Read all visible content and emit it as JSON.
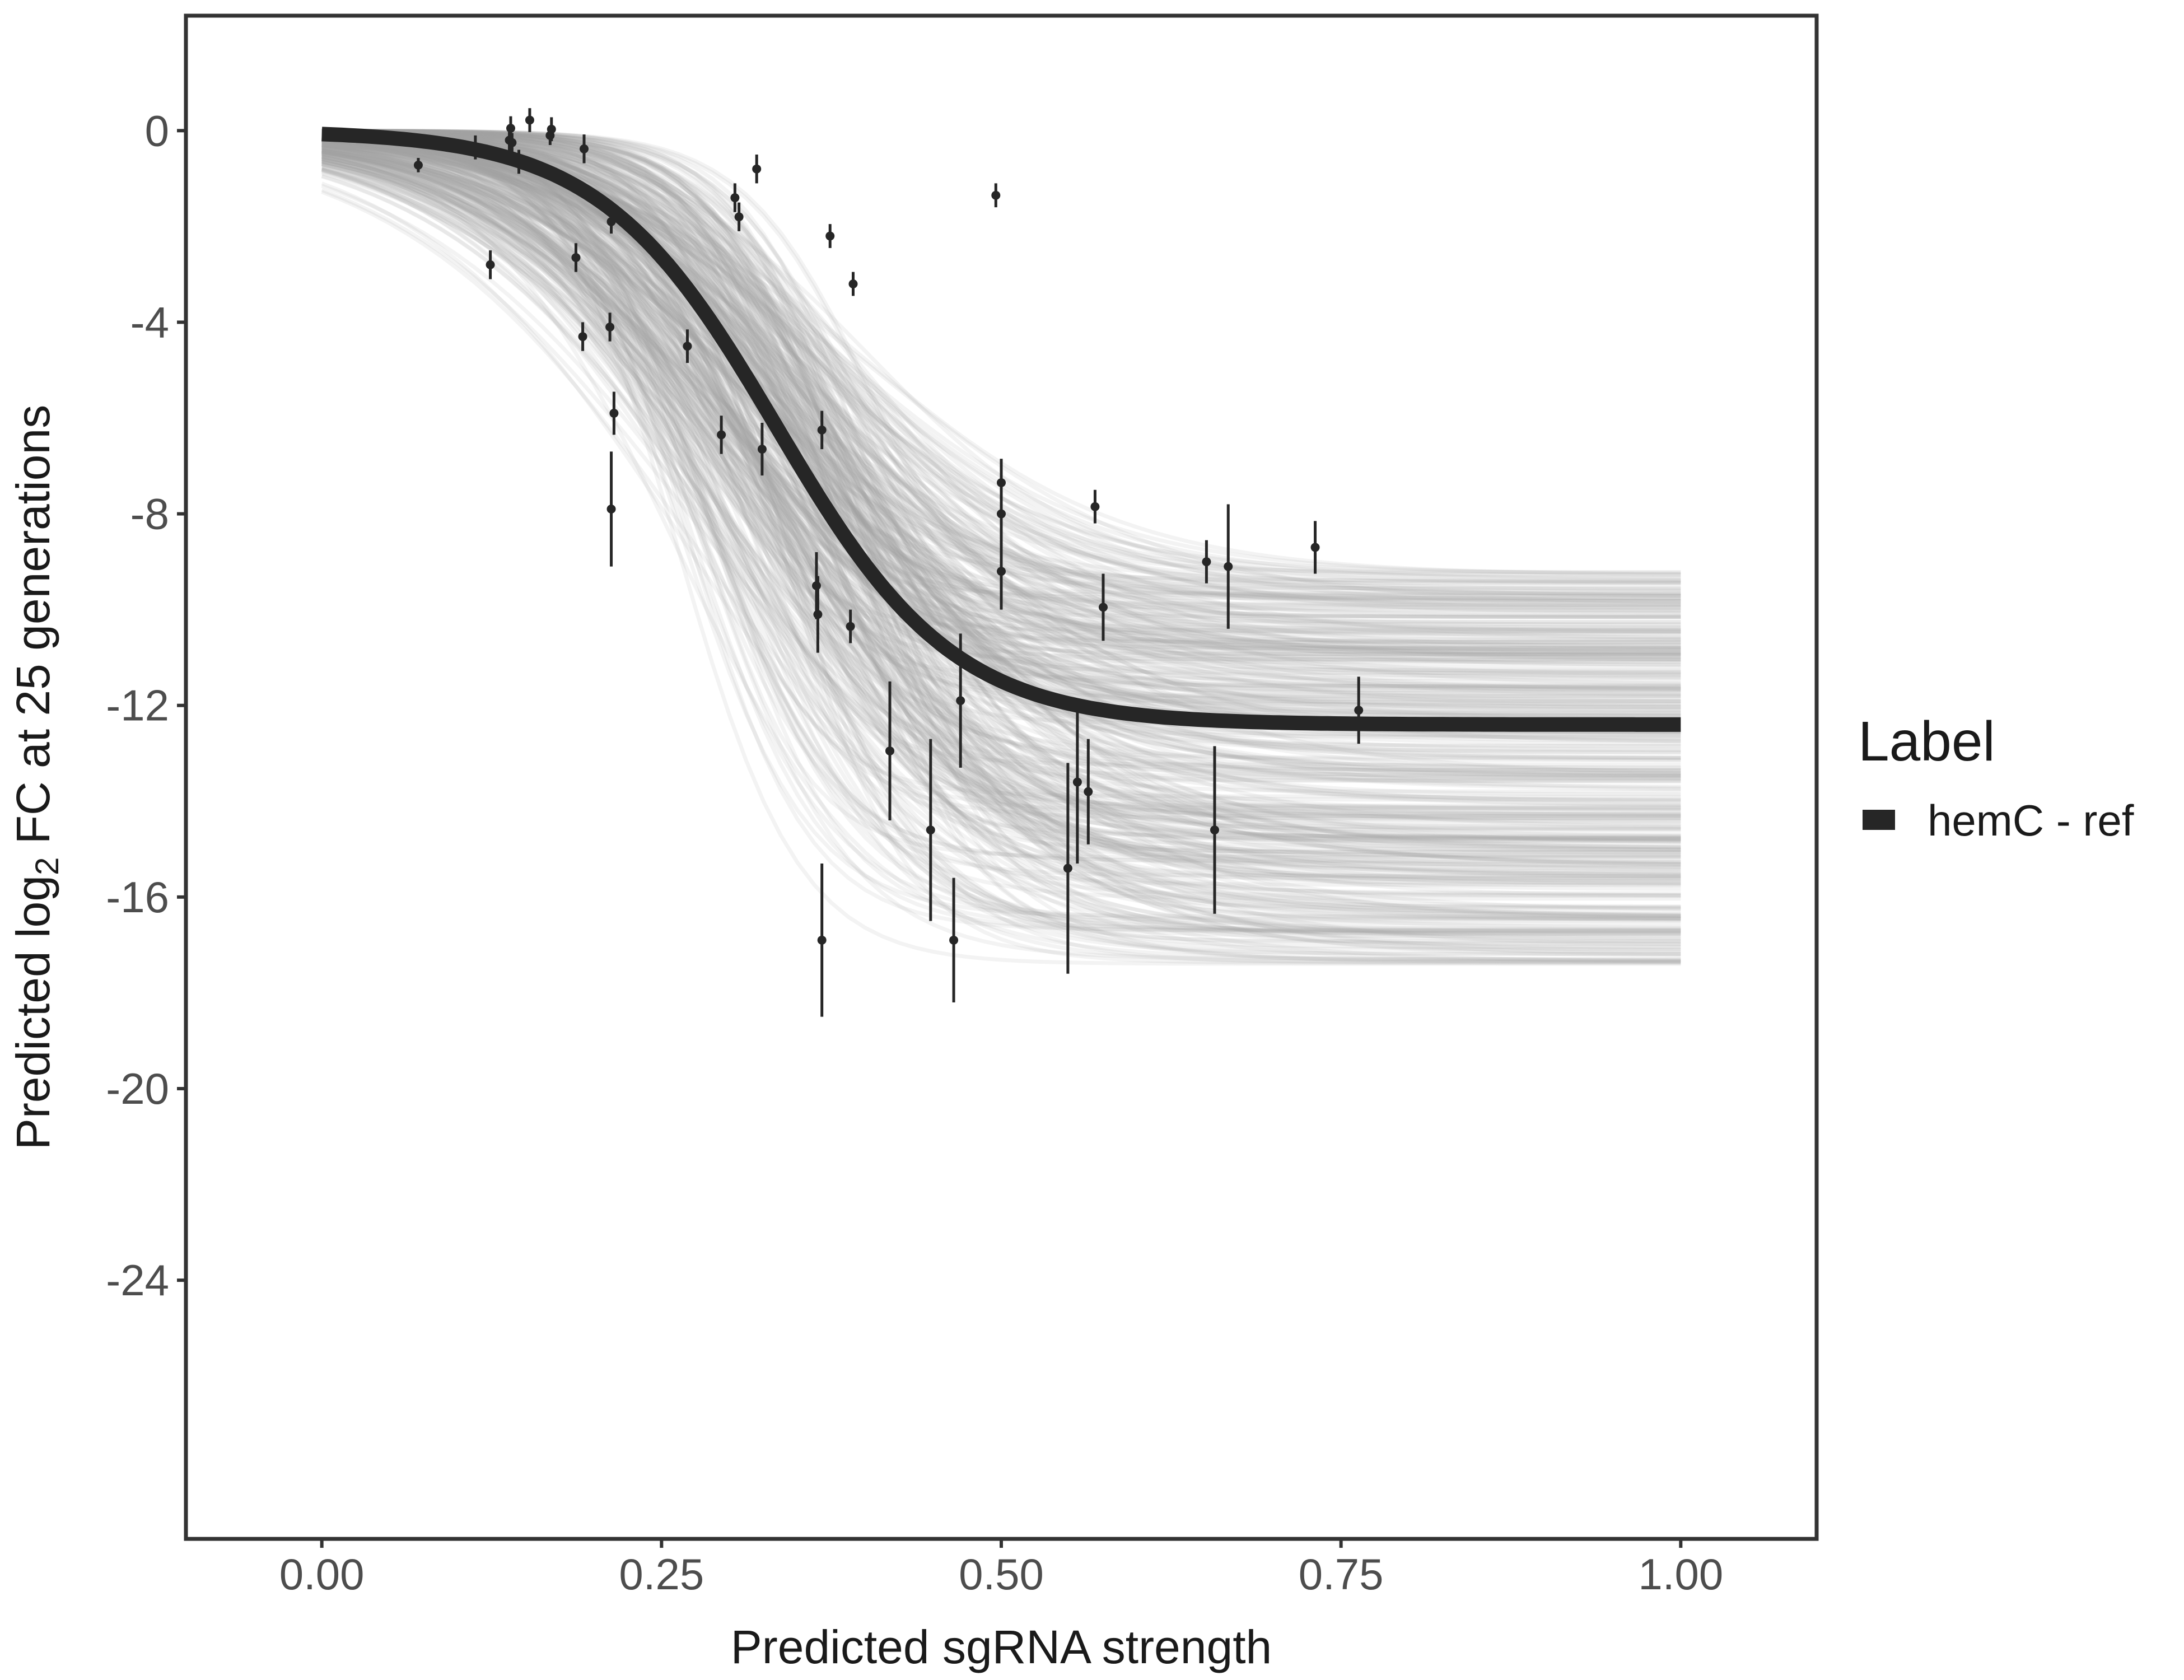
{
  "chart_data": {
    "type": "line",
    "title": "",
    "xlabel": "Predicted sgRNA strength",
    "ylabel": {
      "prefix": "Predicted  log",
      "subscript": "2",
      "suffix": " FC at 25 generations"
    },
    "xlim": [
      -0.1,
      1.1
    ],
    "ylim": [
      -29.4,
      2.4
    ],
    "x_ticks": [
      0.0,
      0.25,
      0.5,
      0.75,
      1.0
    ],
    "x_tick_labels": [
      "0.00",
      "0.25",
      "0.50",
      "0.75",
      "1.00"
    ],
    "y_ticks": [
      0,
      -4,
      -8,
      -12,
      -16,
      -20,
      -24
    ],
    "y_tick_labels": [
      "0",
      "-4",
      "-8",
      "-12",
      "-16",
      "-20",
      "-24"
    ],
    "grid": false,
    "legend": {
      "title": "Label",
      "position": "right",
      "entries": [
        {
          "label": "hemC - ref",
          "color": "#262626"
        }
      ]
    },
    "fit_curve": {
      "name": "hemC - ref",
      "model": "logistic",
      "upper": 0.0,
      "lower": -12.4,
      "midpoint": 0.335,
      "scale": 0.065,
      "color": "#262626"
    },
    "posterior_draws": {
      "count": 400,
      "color": "#a6a6a6",
      "lower_range": [
        -17.4,
        -9.2
      ],
      "midpoint_range": [
        0.26,
        0.41
      ],
      "scale_range": [
        0.04,
        0.11
      ]
    },
    "points": [
      {
        "x": 0.071,
        "y": -0.72,
        "err": 0.15
      },
      {
        "x": 0.113,
        "y": -0.35,
        "err": 0.25
      },
      {
        "x": 0.124,
        "y": -2.8,
        "err": 0.3
      },
      {
        "x": 0.138,
        "y": -0.2,
        "err": 0.25
      },
      {
        "x": 0.139,
        "y": 0.05,
        "err": 0.25
      },
      {
        "x": 0.14,
        "y": -0.25,
        "err": 0.2
      },
      {
        "x": 0.145,
        "y": -0.65,
        "err": 0.25
      },
      {
        "x": 0.153,
        "y": 0.22,
        "err": 0.25
      },
      {
        "x": 0.168,
        "y": -0.1,
        "err": 0.2
      },
      {
        "x": 0.169,
        "y": 0.03,
        "err": 0.25
      },
      {
        "x": 0.187,
        "y": -2.65,
        "err": 0.3
      },
      {
        "x": 0.192,
        "y": -4.3,
        "err": 0.3
      },
      {
        "x": 0.193,
        "y": -0.38,
        "err": 0.3
      },
      {
        "x": 0.212,
        "y": -4.1,
        "err": 0.3
      },
      {
        "x": 0.213,
        "y": -1.9,
        "err": 0.25
      },
      {
        "x": 0.215,
        "y": -5.9,
        "err": 0.45
      },
      {
        "x": 0.213,
        "y": -7.9,
        "err": 1.2
      },
      {
        "x": 0.269,
        "y": -4.5,
        "err": 0.35
      },
      {
        "x": 0.294,
        "y": -6.35,
        "err": 0.4
      },
      {
        "x": 0.304,
        "y": -1.4,
        "err": 0.3
      },
      {
        "x": 0.307,
        "y": -1.8,
        "err": 0.3
      },
      {
        "x": 0.32,
        "y": -0.8,
        "err": 0.3
      },
      {
        "x": 0.324,
        "y": -6.65,
        "err": 0.55
      },
      {
        "x": 0.364,
        "y": -9.5,
        "err": 0.7
      },
      {
        "x": 0.365,
        "y": -10.1,
        "err": 0.8
      },
      {
        "x": 0.368,
        "y": -6.25,
        "err": 0.4
      },
      {
        "x": 0.368,
        "y": -16.9,
        "err": 1.6
      },
      {
        "x": 0.374,
        "y": -2.2,
        "err": 0.25
      },
      {
        "x": 0.389,
        "y": -10.35,
        "err": 0.35
      },
      {
        "x": 0.391,
        "y": -3.2,
        "err": 0.25
      },
      {
        "x": 0.418,
        "y": -12.95,
        "err": 1.45
      },
      {
        "x": 0.448,
        "y": -14.6,
        "err": 1.9
      },
      {
        "x": 0.465,
        "y": -16.9,
        "err": 1.3
      },
      {
        "x": 0.47,
        "y": -11.9,
        "err": 1.4
      },
      {
        "x": 0.496,
        "y": -1.35,
        "err": 0.25
      },
      {
        "x": 0.5,
        "y": -9.2,
        "err": 0.8
      },
      {
        "x": 0.5,
        "y": -8.0,
        "err": 0.8
      },
      {
        "x": 0.5,
        "y": -7.35,
        "err": 0.5
      },
      {
        "x": 0.549,
        "y": -15.4,
        "err": 2.2
      },
      {
        "x": 0.556,
        "y": -13.6,
        "err": 1.7
      },
      {
        "x": 0.564,
        "y": -13.8,
        "err": 1.1
      },
      {
        "x": 0.569,
        "y": -7.85,
        "err": 0.35
      },
      {
        "x": 0.575,
        "y": -9.95,
        "err": 0.7
      },
      {
        "x": 0.651,
        "y": -9.0,
        "err": 0.45
      },
      {
        "x": 0.657,
        "y": -14.6,
        "err": 1.75
      },
      {
        "x": 0.667,
        "y": -9.1,
        "err": 1.3
      },
      {
        "x": 0.731,
        "y": -8.7,
        "err": 0.55
      },
      {
        "x": 0.763,
        "y": -12.1,
        "err": 0.7
      }
    ]
  }
}
